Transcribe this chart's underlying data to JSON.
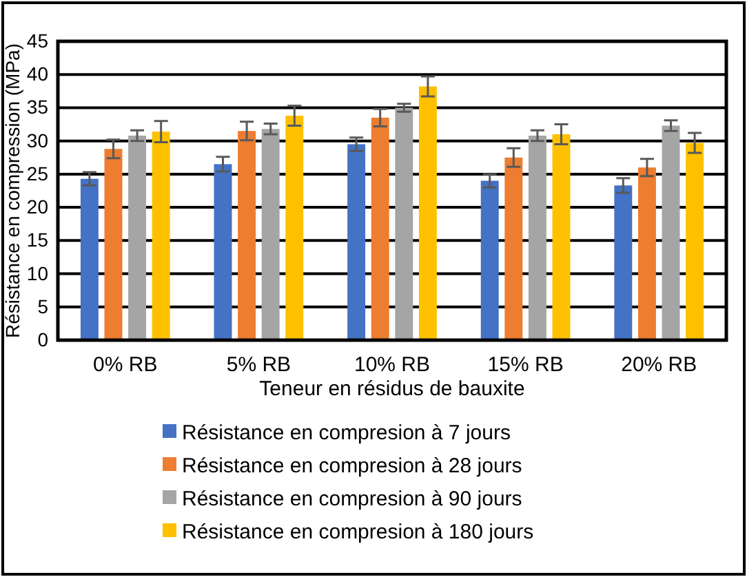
{
  "chart_data": {
    "type": "bar",
    "xlabel": "Teneur en résidus de bauxite",
    "ylabel": "Résistance en compression (MPa)",
    "categories": [
      "0% RB",
      "5% RB",
      "10% RB",
      "15% RB",
      "20% RB"
    ],
    "series": [
      {
        "name": "Résistance en compresion à 7 jours",
        "color": "#4472c4",
        "values": [
          24.3,
          26.5,
          29.5,
          24,
          23.3
        ],
        "errors": [
          1,
          1.1,
          1,
          1,
          1.1
        ]
      },
      {
        "name": "Résistance en compresion à 28 jours",
        "color": "#ed7d31",
        "values": [
          28.8,
          31.5,
          33.5,
          27.5,
          26
        ],
        "errors": [
          1.4,
          1.4,
          1.3,
          1.4,
          1.3
        ]
      },
      {
        "name": "Résistance en compresion à 90 jours",
        "color": "#a5a5a5",
        "values": [
          30.8,
          31.8,
          35,
          30.8,
          32.3
        ],
        "errors": [
          0.8,
          0.8,
          0.6,
          0.8,
          0.8
        ]
      },
      {
        "name": "Résistance en compresion à 180 jours",
        "color": "#ffc000",
        "values": [
          31.4,
          33.8,
          38.2,
          31,
          29.7
        ],
        "errors": [
          1.6,
          1.5,
          1.5,
          1.5,
          1.5
        ]
      }
    ],
    "ylim": [
      0,
      45
    ],
    "yticks": [
      0,
      5,
      10,
      15,
      20,
      25,
      30,
      35,
      40,
      45
    ],
    "grid": "y",
    "legend": "bottom"
  }
}
